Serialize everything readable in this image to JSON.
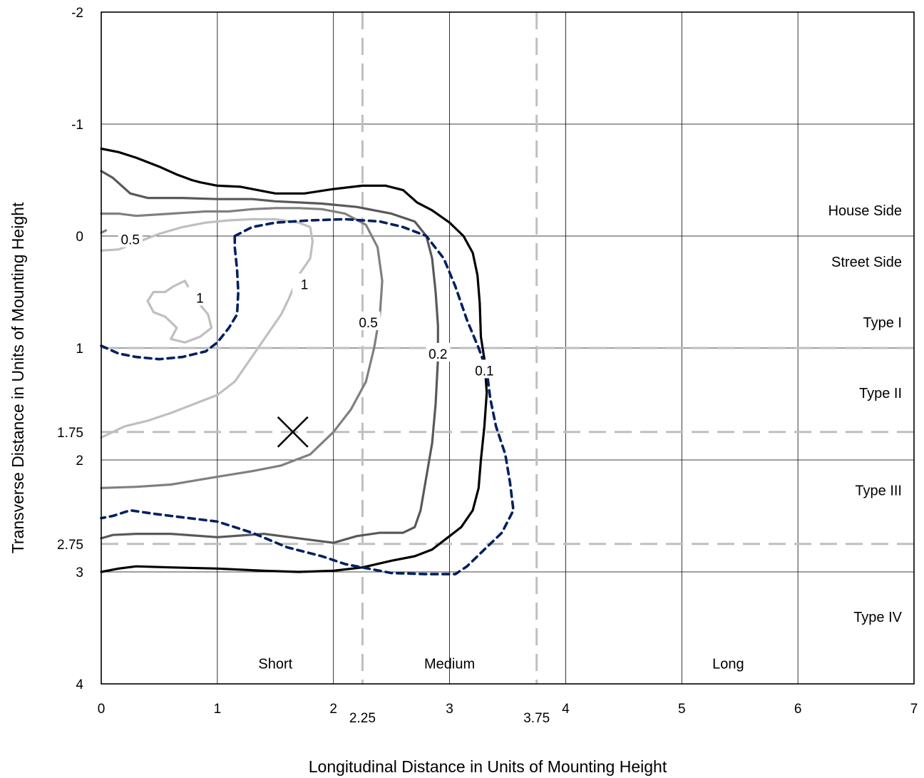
{
  "chart_data": {
    "type": "line",
    "title": "",
    "xlabel": "Longitudinal Distance in Units of Mounting Height",
    "ylabel": "Transverse Distance in Units of Mounting Height",
    "xlim": [
      0,
      7
    ],
    "ylim": [
      -2,
      4
    ],
    "y_inverted": true,
    "x_ticks": [
      "0",
      "1",
      "2",
      "3",
      "4",
      "5",
      "6",
      "7"
    ],
    "x_extra_ticks": [
      {
        "value": 2.25,
        "label": "2.25"
      },
      {
        "value": 3.75,
        "label": "3.75"
      }
    ],
    "y_ticks": [
      {
        "value": -2,
        "label": "-2"
      },
      {
        "value": -1,
        "label": "-1"
      },
      {
        "value": 0,
        "label": "0"
      },
      {
        "value": 1,
        "label": "1"
      },
      {
        "value": 1.75,
        "label": "1.75"
      },
      {
        "value": 2,
        "label": "2"
      },
      {
        "value": 2.75,
        "label": "2.75"
      },
      {
        "value": 3,
        "label": "3"
      },
      {
        "value": 4,
        "label": "4"
      }
    ],
    "grid": true,
    "reference_lines": {
      "vertical_dashed": [
        2.25,
        3.75
      ],
      "horizontal_dashed": [
        1,
        1.75,
        2.75
      ],
      "color": "#bfbfbf"
    },
    "zone_labels": [
      {
        "text": "House Side",
        "x": 6.55,
        "y": -0.23
      },
      {
        "text": "Street Side",
        "x": 6.55,
        "y": 0.23
      },
      {
        "text": "Type I",
        "x": 6.55,
        "y": 0.77
      },
      {
        "text": "Type II",
        "x": 6.55,
        "y": 1.4
      },
      {
        "text": "Type III",
        "x": 6.55,
        "y": 2.27
      },
      {
        "text": "Type IV",
        "x": 6.55,
        "y": 3.4
      },
      {
        "text": "Short",
        "x": 1.5,
        "y": 3.82
      },
      {
        "text": "Medium",
        "x": 3.0,
        "y": 3.82
      },
      {
        "text": "Long",
        "x": 5.4,
        "y": 3.82
      }
    ],
    "marker": {
      "symbol": "x",
      "x": 1.65,
      "y": 1.75
    },
    "series": [
      {
        "name": "",
        "color": "#000000",
        "style": "solid",
        "points": [
          [
            0.0,
            -0.78
          ],
          [
            0.15,
            -0.75
          ],
          [
            0.3,
            -0.7
          ],
          [
            0.5,
            -0.62
          ],
          [
            0.65,
            -0.55
          ],
          [
            0.78,
            -0.5
          ],
          [
            0.85,
            -0.48
          ],
          [
            1.0,
            -0.45
          ],
          [
            1.2,
            -0.44
          ],
          [
            1.5,
            -0.38
          ],
          [
            1.75,
            -0.38
          ],
          [
            2.0,
            -0.42
          ],
          [
            2.25,
            -0.45
          ],
          [
            2.45,
            -0.45
          ],
          [
            2.6,
            -0.41
          ],
          [
            2.72,
            -0.3
          ],
          [
            2.85,
            -0.23
          ],
          [
            3.0,
            -0.12
          ],
          [
            3.12,
            0.0
          ],
          [
            3.2,
            0.15
          ],
          [
            3.24,
            0.35
          ],
          [
            3.26,
            0.6
          ],
          [
            3.27,
            0.9
          ],
          [
            3.3,
            1.1
          ],
          [
            3.32,
            1.4
          ],
          [
            3.3,
            1.7
          ],
          [
            3.27,
            2.0
          ],
          [
            3.25,
            2.25
          ],
          [
            3.2,
            2.45
          ],
          [
            3.1,
            2.6
          ],
          [
            3.0,
            2.68
          ],
          [
            2.85,
            2.8
          ],
          [
            2.7,
            2.86
          ],
          [
            2.5,
            2.9
          ],
          [
            2.25,
            2.96
          ],
          [
            2.0,
            2.99
          ],
          [
            1.7,
            3.0
          ],
          [
            1.4,
            2.99
          ],
          [
            1.0,
            2.97
          ],
          [
            0.6,
            2.96
          ],
          [
            0.3,
            2.95
          ],
          [
            0.15,
            2.97
          ],
          [
            0.0,
            3.0
          ]
        ],
        "label": {
          "text": "0.1",
          "x": 3.3,
          "y": 1.2
        }
      },
      {
        "name": "",
        "color": "#595959",
        "style": "solid",
        "points": [
          [
            0.0,
            -0.58
          ],
          [
            0.1,
            -0.52
          ],
          [
            0.25,
            -0.38
          ],
          [
            0.4,
            -0.34
          ],
          [
            0.7,
            -0.34
          ],
          [
            1.0,
            -0.33
          ],
          [
            1.3,
            -0.33
          ],
          [
            1.5,
            -0.31
          ],
          [
            1.7,
            -0.3
          ],
          [
            1.9,
            -0.29
          ],
          [
            2.2,
            -0.26
          ],
          [
            2.5,
            -0.2
          ],
          [
            2.7,
            -0.13
          ],
          [
            2.8,
            0.0
          ],
          [
            2.85,
            0.2
          ],
          [
            2.88,
            0.5
          ],
          [
            2.9,
            0.8
          ],
          [
            2.9,
            1.1
          ],
          [
            2.88,
            1.5
          ],
          [
            2.85,
            1.85
          ],
          [
            2.8,
            2.15
          ],
          [
            2.75,
            2.45
          ],
          [
            2.7,
            2.6
          ],
          [
            2.6,
            2.65
          ],
          [
            2.4,
            2.65
          ],
          [
            2.2,
            2.68
          ],
          [
            2.0,
            2.74
          ],
          [
            1.7,
            2.7
          ],
          [
            1.4,
            2.66
          ],
          [
            1.0,
            2.69
          ],
          [
            0.6,
            2.66
          ],
          [
            0.3,
            2.66
          ],
          [
            0.1,
            2.67
          ],
          [
            0.0,
            2.7
          ]
        ],
        "label": {
          "text": "0.2",
          "x": 2.9,
          "y": 1.05
        }
      },
      {
        "name": "",
        "color": "#808080",
        "style": "solid",
        "points": [
          [
            0.0,
            -0.2
          ],
          [
            0.15,
            -0.2
          ],
          [
            0.3,
            -0.18
          ],
          [
            0.6,
            -0.2
          ],
          [
            0.9,
            -0.22
          ],
          [
            1.1,
            -0.22
          ],
          [
            1.3,
            -0.24
          ],
          [
            1.5,
            -0.25
          ],
          [
            1.7,
            -0.25
          ],
          [
            1.9,
            -0.24
          ],
          [
            2.1,
            -0.2
          ],
          [
            2.28,
            -0.1
          ],
          [
            2.38,
            0.1
          ],
          [
            2.42,
            0.4
          ],
          [
            2.4,
            0.7
          ],
          [
            2.35,
            1.0
          ],
          [
            2.28,
            1.3
          ],
          [
            2.15,
            1.55
          ],
          [
            2.0,
            1.75
          ],
          [
            1.8,
            1.95
          ],
          [
            1.55,
            2.05
          ],
          [
            1.3,
            2.1
          ],
          [
            1.0,
            2.15
          ],
          [
            0.6,
            2.22
          ],
          [
            0.3,
            2.24
          ],
          [
            0.0,
            2.25
          ]
        ],
        "label": {
          "text": "0.5",
          "x": 2.3,
          "y": 0.77
        }
      },
      {
        "name": "",
        "color": "#bfbfbf",
        "style": "solid",
        "points": [
          [
            0.0,
            0.13
          ],
          [
            0.15,
            0.12
          ],
          [
            0.35,
            0.04
          ],
          [
            0.5,
            -0.02
          ],
          [
            0.7,
            -0.08
          ],
          [
            0.9,
            -0.12
          ],
          [
            1.1,
            -0.14
          ],
          [
            1.3,
            -0.15
          ],
          [
            1.5,
            -0.15
          ],
          [
            1.7,
            -0.12
          ],
          [
            1.8,
            -0.08
          ],
          [
            1.82,
            0.05
          ],
          [
            1.8,
            0.2
          ],
          [
            1.7,
            0.35
          ],
          [
            1.62,
            0.55
          ],
          [
            1.55,
            0.7
          ],
          [
            1.45,
            0.85
          ],
          [
            1.35,
            1.0
          ],
          [
            1.25,
            1.15
          ],
          [
            1.15,
            1.3
          ],
          [
            1.0,
            1.42
          ],
          [
            0.8,
            1.5
          ],
          [
            0.6,
            1.58
          ],
          [
            0.4,
            1.65
          ],
          [
            0.2,
            1.7
          ],
          [
            0.0,
            1.8
          ]
        ],
        "label": {
          "text": "1",
          "x": 1.75,
          "y": 0.43
        }
      },
      {
        "name": "",
        "color": "#bfbfbf",
        "style": "solid",
        "points": [
          [
            0.72,
            0.4
          ],
          [
            0.62,
            0.45
          ],
          [
            0.55,
            0.5
          ],
          [
            0.45,
            0.5
          ],
          [
            0.4,
            0.58
          ],
          [
            0.45,
            0.68
          ],
          [
            0.55,
            0.72
          ],
          [
            0.65,
            0.82
          ],
          [
            0.6,
            0.92
          ],
          [
            0.72,
            0.95
          ],
          [
            0.85,
            0.9
          ],
          [
            0.95,
            0.82
          ],
          [
            0.92,
            0.7
          ],
          [
            0.8,
            0.55
          ],
          [
            0.72,
            0.4
          ]
        ],
        "label": {
          "text": "1",
          "x": 0.85,
          "y": 0.55
        }
      },
      {
        "name": "",
        "color": "#002060",
        "style": "dashed",
        "points": [
          [
            1.15,
            0.0
          ],
          [
            1.3,
            -0.08
          ],
          [
            1.5,
            -0.12
          ],
          [
            1.8,
            -0.14
          ],
          [
            2.1,
            -0.15
          ],
          [
            2.4,
            -0.13
          ],
          [
            2.6,
            -0.08
          ],
          [
            2.8,
            0.0
          ],
          [
            2.95,
            0.2
          ],
          [
            3.05,
            0.45
          ],
          [
            3.15,
            0.75
          ],
          [
            3.25,
            1.0
          ],
          [
            3.32,
            1.2
          ],
          [
            3.35,
            1.45
          ],
          [
            3.4,
            1.7
          ],
          [
            3.48,
            1.95
          ],
          [
            3.52,
            2.2
          ],
          [
            3.55,
            2.45
          ],
          [
            3.45,
            2.65
          ],
          [
            3.3,
            2.8
          ],
          [
            3.15,
            2.95
          ],
          [
            3.05,
            3.02
          ],
          [
            2.8,
            3.02
          ],
          [
            2.5,
            3.01
          ],
          [
            2.3,
            2.97
          ],
          [
            2.1,
            2.93
          ],
          [
            1.9,
            2.86
          ],
          [
            1.6,
            2.78
          ],
          [
            1.3,
            2.65
          ],
          [
            1.0,
            2.55
          ],
          [
            0.6,
            2.5
          ],
          [
            0.45,
            2.48
          ],
          [
            0.25,
            2.45
          ],
          [
            0.1,
            2.5
          ],
          [
            0.0,
            2.52
          ]
        ],
        "label": {
          "text": "",
          "x": 0,
          "y": 0
        }
      },
      {
        "name": "",
        "color": "#002060",
        "style": "dashed",
        "points": [
          [
            0.0,
            0.98
          ],
          [
            0.15,
            1.05
          ],
          [
            0.3,
            1.08
          ],
          [
            0.5,
            1.1
          ],
          [
            0.7,
            1.08
          ],
          [
            0.9,
            1.03
          ],
          [
            1.0,
            0.95
          ],
          [
            1.1,
            0.82
          ],
          [
            1.17,
            0.7
          ],
          [
            1.18,
            0.5
          ],
          [
            1.17,
            0.3
          ],
          [
            1.15,
            0.1
          ],
          [
            1.15,
            0.0
          ]
        ],
        "label": {
          "text": "",
          "x": 0,
          "y": 0
        }
      },
      {
        "name": "",
        "color": "#808080",
        "style": "solid",
        "points": [
          [
            0.0,
            -0.03
          ],
          [
            0.04,
            -0.05
          ]
        ],
        "label": {
          "text": "0.5",
          "x": 0.25,
          "y": 0.03
        }
      }
    ]
  }
}
